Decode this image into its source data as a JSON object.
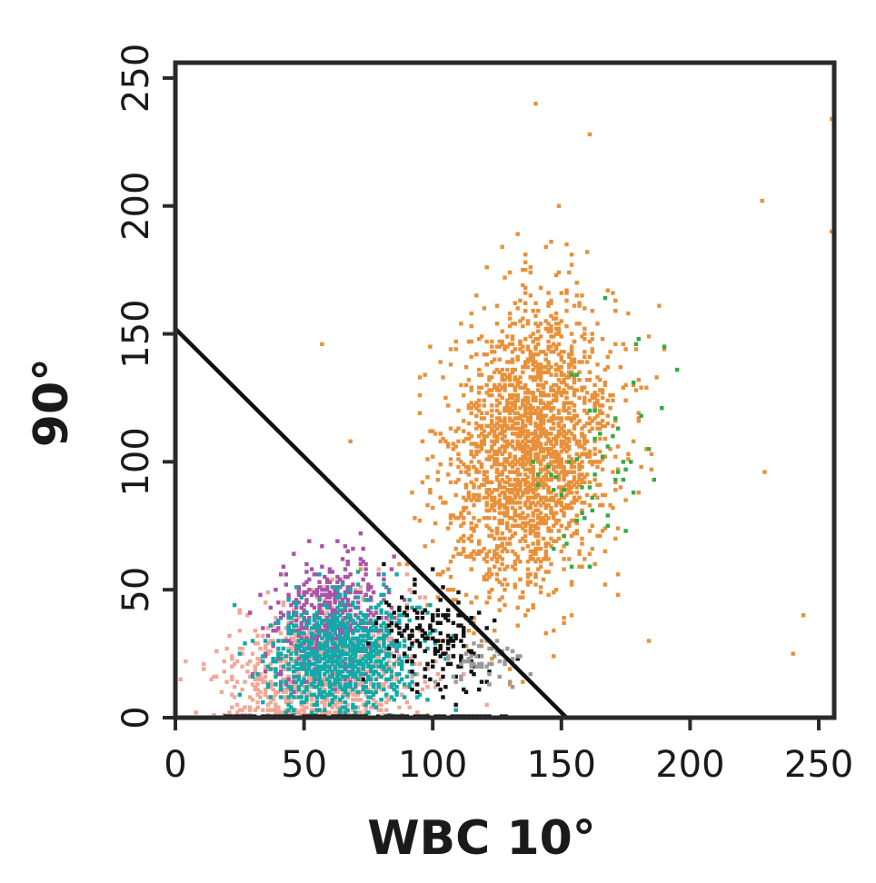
{
  "chart_data": {
    "type": "scatter",
    "title": "",
    "xlabel": "WBC 10°",
    "ylabel": "90°",
    "xlim": [
      0,
      256
    ],
    "ylim": [
      0,
      256
    ],
    "xticks": [
      0,
      50,
      100,
      150,
      200,
      250
    ],
    "yticks": [
      0,
      50,
      100,
      150,
      200,
      250
    ],
    "grid": false,
    "legend": "none",
    "divider_line": {
      "x": [
        0,
        152
      ],
      "y": [
        152,
        0
      ],
      "color": "#111111"
    },
    "series": [
      {
        "color": "#e8913b",
        "count": 2200,
        "cx": 138,
        "cy": 105,
        "sx": 16,
        "sy": 28,
        "rho": 0.2
      },
      {
        "color": "#f0a898",
        "count": 1100,
        "cx": 58,
        "cy": 18,
        "sx": 17,
        "sy": 13,
        "rho": 0.1
      },
      {
        "color": "#a855a8",
        "count": 500,
        "cx": 60,
        "cy": 38,
        "sx": 11,
        "sy": 12,
        "rho": 0.2
      },
      {
        "color": "#12aaa8",
        "count": 900,
        "cx": 65,
        "cy": 24,
        "sx": 14,
        "sy": 11,
        "rho": 0.2
      },
      {
        "color": "#111111",
        "count": 170,
        "cx": 102,
        "cy": 30,
        "sx": 11,
        "sy": 10,
        "rho": -0.3
      },
      {
        "color": "#9a9a9a",
        "count": 60,
        "cx": 120,
        "cy": 22,
        "sx": 8,
        "sy": 5,
        "rho": 0
      },
      {
        "color": "#33aa44",
        "count": 55,
        "cx": 165,
        "cy": 100,
        "sx": 13,
        "sy": 22,
        "rho": 0.3
      }
    ],
    "outliers": {
      "color": "#e8913b",
      "x": [
        140,
        161,
        255,
        228,
        255,
        244,
        240,
        229,
        184,
        172,
        68,
        57
      ],
      "y": [
        240,
        228,
        234,
        202,
        190,
        40,
        25,
        96,
        30,
        48,
        108,
        146
      ]
    }
  }
}
